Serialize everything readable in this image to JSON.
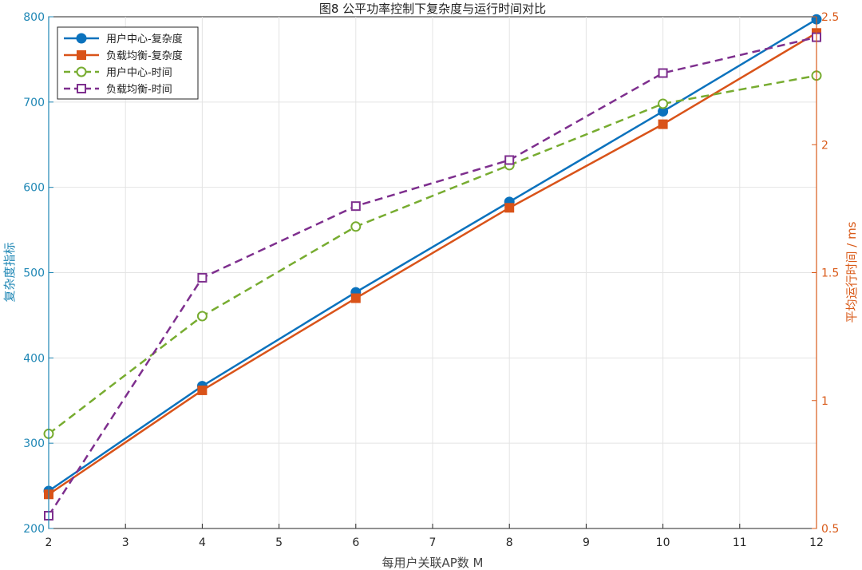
{
  "chart_data": {
    "type": "line",
    "title": "图8 公平功率控制下复杂度与运行时间对比",
    "xlabel": "每用户关联AP数 M",
    "ylabel_left": "复杂度指标",
    "ylabel_right": "平均运行时间 / ms",
    "x": [
      2,
      4,
      6,
      8,
      10,
      12
    ],
    "xlim": [
      2,
      12
    ],
    "ylim_left": [
      200,
      800
    ],
    "ylim_right": [
      0.5,
      2.5
    ],
    "x_ticks": [
      "2",
      "3",
      "4",
      "5",
      "6",
      "7",
      "8",
      "9",
      "10",
      "11",
      "12"
    ],
    "y_ticks_left": [
      "200",
      "300",
      "400",
      "500",
      "600",
      "700",
      "800"
    ],
    "y_ticks_right": [
      "0.5",
      "1",
      "1.5",
      "2",
      "2.5"
    ],
    "grid": true,
    "legend_position": "top-left",
    "colors": {
      "left_axis": "#1f87b5",
      "right_axis": "#d95b1a"
    },
    "series": [
      {
        "name": "用户中心-复杂度",
        "axis": "left",
        "color": "#0b72bd",
        "marker": "circle-filled",
        "dash": "solid",
        "values": [
          244,
          367,
          477,
          583,
          689,
          797
        ]
      },
      {
        "name": "负载均衡-复杂度",
        "axis": "left",
        "color": "#d95319",
        "marker": "square-filled",
        "dash": "solid",
        "values": [
          240,
          362,
          470,
          576,
          674,
          781
        ]
      },
      {
        "name": "用户中心-时间",
        "axis": "right",
        "color": "#77ac30",
        "marker": "circle-open",
        "dash": "dashed",
        "values": [
          0.87,
          1.33,
          1.68,
          1.92,
          2.16,
          2.27
        ]
      },
      {
        "name": "负载均衡-时间",
        "axis": "right",
        "color": "#7e2f8e",
        "marker": "square-open",
        "dash": "dashed",
        "values": [
          0.55,
          1.48,
          1.76,
          1.94,
          2.28,
          2.42
        ]
      }
    ]
  }
}
